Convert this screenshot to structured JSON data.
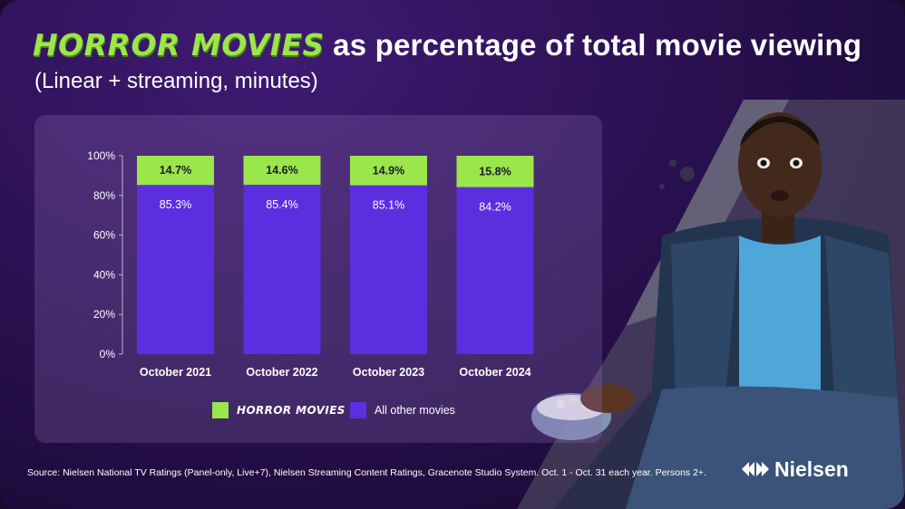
{
  "header": {
    "title_highlight": "HORROR MOVIES",
    "title_rest": "as percentage of total movie viewing",
    "subtitle": "(Linear + streaming, minutes)"
  },
  "colors": {
    "horror": "#9be64a",
    "other": "#5b2fe0",
    "axis_text": "#ffffff"
  },
  "chart_data": {
    "type": "bar",
    "stacked": true,
    "categories": [
      "October 2021",
      "October 2022",
      "October 2023",
      "October 2024"
    ],
    "series": [
      {
        "name": "All other movies",
        "values": [
          85.3,
          85.4,
          85.1,
          84.2
        ],
        "labels": [
          "85.3%",
          "85.4%",
          "85.1%",
          "84.2%"
        ]
      },
      {
        "name": "HORROR MOVIES",
        "values": [
          14.7,
          14.6,
          14.9,
          15.8
        ],
        "labels": [
          "14.7%",
          "14.6%",
          "14.9%",
          "15.8%"
        ]
      }
    ],
    "ylim": [
      0,
      100
    ],
    "yticks": [
      "0%",
      "20%",
      "40%",
      "60%",
      "80%",
      "100%"
    ],
    "ytick_values": [
      0,
      20,
      40,
      60,
      80,
      100
    ],
    "grid": false,
    "legend_position": "bottom"
  },
  "legend": {
    "horror_label": "HORROR MOVIES",
    "other_label": "All other movies"
  },
  "footer": {
    "source": "Source: Nielsen National TV Ratings (Panel-only, Live+7), Nielsen Streaming Content Ratings, Gracenote Studio System. Oct. 1 - Oct. 31 each year. Persons 2+.",
    "brand": "Nielsen"
  }
}
